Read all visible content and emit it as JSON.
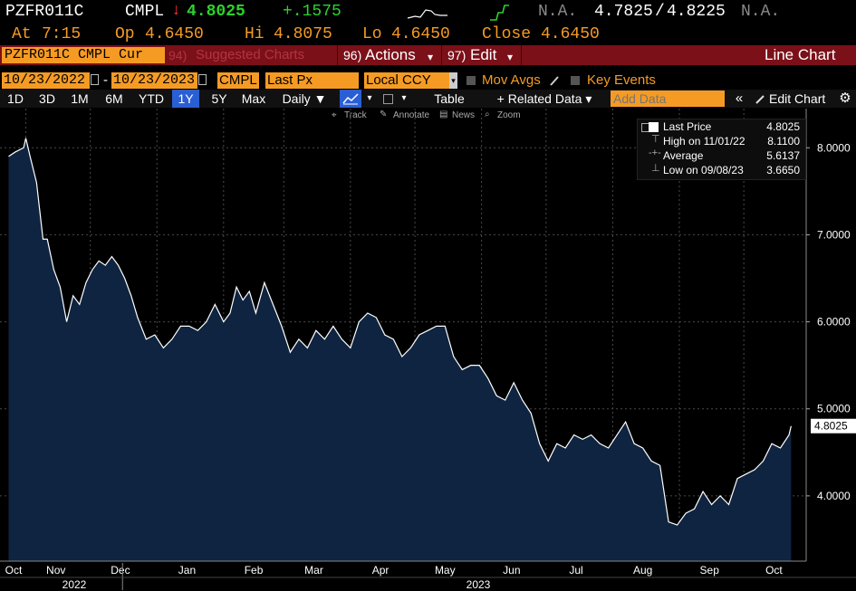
{
  "header": {
    "ticker": "PZFR011C",
    "source": "CMPL",
    "arrow": "↓",
    "last": "4.8025",
    "change": "+.1575",
    "na1": "N.A.",
    "bid": "4.7825",
    "slash": "/",
    "ask": "4.8225",
    "na2": "N.A.",
    "at_label": "At",
    "time": "7:15",
    "op_label": "Op",
    "open": "4.6450",
    "hi_label": "Hi",
    "high": "4.8075",
    "lo_label": "Lo",
    "low": "4.6450",
    "close_label": "Close",
    "close": "4.6450"
  },
  "titlebar": {
    "security": "PZFR011C CMPL Cur",
    "suggested_num": "94)",
    "suggested": "Suggested Charts",
    "actions_num": "96)",
    "actions": "Actions",
    "edit_num": "97)",
    "edit": "Edit",
    "chart_type": "Line Chart"
  },
  "toolbar1": {
    "start_date": "10/23/2022",
    "dash": "-",
    "end_date": "10/23/2023",
    "source": "CMPL",
    "field": "Last Px",
    "currency": "Local CCY",
    "mov_avgs": "Mov Avgs",
    "key_events": "Key Events"
  },
  "toolbar2": {
    "ranges": [
      "1D",
      "3D",
      "1M",
      "6M",
      "YTD",
      "1Y",
      "5Y",
      "Max"
    ],
    "selected_range": "1Y",
    "period": "Daily ▼",
    "table": "Table",
    "related": "+ Related Data ▾",
    "add_data_placeholder": "Add Data",
    "collapse": "«",
    "edit_chart": "Edit Chart",
    "track": "Track",
    "annotate": "Annotate",
    "news": "News",
    "zoom": "Zoom"
  },
  "legend": {
    "last_price_label": "Last Price",
    "last_price": "4.8025",
    "high_label": "High on 11/01/22",
    "high": "8.1100",
    "average_label": "Average",
    "average": "5.6137",
    "low_label": "Low on 09/08/23",
    "low": "3.6650"
  },
  "colors": {
    "accent_orange": "#f59b24",
    "title_red": "#7b1019",
    "down_red": "#ff3030",
    "up_green": "#2ed12e",
    "area_fill": "#0f2440",
    "line": "#ffffff"
  },
  "chart_data": {
    "type": "area",
    "ylim": [
      3.25,
      8.45
    ],
    "yticks": [
      "4.0000",
      "5.0000",
      "6.0000",
      "7.0000",
      "8.0000"
    ],
    "ytick_values": [
      4,
      5,
      6,
      7,
      8
    ],
    "last_value_label": "4.8025",
    "months": [
      "Oct",
      "Nov",
      "Dec",
      "Jan",
      "Feb",
      "Mar",
      "Apr",
      "May",
      "Jun",
      "Jul",
      "Aug",
      "Sep",
      "Oct"
    ],
    "years": [
      "2022",
      "2023"
    ],
    "series": [
      {
        "x": [
          "2022-10-24",
          "2022-10-27",
          "2022-10-31",
          "2022-11-01",
          "2022-11-03",
          "2022-11-06",
          "2022-11-09",
          "2022-11-11",
          "2022-11-14",
          "2022-11-17",
          "2022-11-20",
          "2022-11-23",
          "2022-11-26",
          "2022-11-29",
          "2022-12-02",
          "2022-12-05",
          "2022-12-08",
          "2022-12-11",
          "2022-12-14",
          "2022-12-17",
          "2022-12-20",
          "2022-12-23",
          "2022-12-27",
          "2022-12-31",
          "2023-01-04",
          "2023-01-08",
          "2023-01-12",
          "2023-01-16",
          "2023-01-20",
          "2023-01-24",
          "2023-01-28",
          "2023-02-01",
          "2023-02-04",
          "2023-02-07",
          "2023-02-10",
          "2023-02-13",
          "2023-02-16",
          "2023-02-20",
          "2023-02-24",
          "2023-02-28",
          "2023-03-04",
          "2023-03-08",
          "2023-03-12",
          "2023-03-16",
          "2023-03-20",
          "2023-03-24",
          "2023-03-28",
          "2023-04-01",
          "2023-04-05",
          "2023-04-09",
          "2023-04-13",
          "2023-04-17",
          "2023-04-21",
          "2023-04-25",
          "2023-04-29",
          "2023-05-03",
          "2023-05-07",
          "2023-05-11",
          "2023-05-15",
          "2023-05-19",
          "2023-05-23",
          "2023-05-27",
          "2023-05-31",
          "2023-06-04",
          "2023-06-08",
          "2023-06-12",
          "2023-06-16",
          "2023-06-20",
          "2023-06-24",
          "2023-06-28",
          "2023-07-02",
          "2023-07-06",
          "2023-07-10",
          "2023-07-14",
          "2023-07-18",
          "2023-07-22",
          "2023-07-26",
          "2023-07-30",
          "2023-08-03",
          "2023-08-07",
          "2023-08-11",
          "2023-08-15",
          "2023-08-19",
          "2023-08-23",
          "2023-08-27",
          "2023-08-31",
          "2023-09-04",
          "2023-09-08",
          "2023-09-12",
          "2023-09-16",
          "2023-09-20",
          "2023-09-24",
          "2023-09-28",
          "2023-10-02",
          "2023-10-06",
          "2023-10-10",
          "2023-10-14",
          "2023-10-18",
          "2023-10-22",
          "2023-10-23"
        ],
        "values": [
          7.9,
          7.95,
          8.0,
          8.11,
          7.9,
          7.6,
          6.95,
          6.95,
          6.6,
          6.4,
          6.0,
          6.3,
          6.2,
          6.45,
          6.6,
          6.7,
          6.65,
          6.75,
          6.65,
          6.5,
          6.3,
          6.05,
          5.8,
          5.85,
          5.7,
          5.8,
          5.95,
          5.95,
          5.9,
          6.0,
          6.2,
          6.0,
          6.1,
          6.4,
          6.25,
          6.35,
          6.1,
          6.45,
          6.2,
          5.95,
          5.65,
          5.8,
          5.7,
          5.9,
          5.8,
          5.95,
          5.8,
          5.7,
          6.0,
          6.1,
          6.05,
          5.85,
          5.8,
          5.6,
          5.7,
          5.85,
          5.9,
          5.95,
          5.95,
          5.6,
          5.45,
          5.5,
          5.5,
          5.35,
          5.15,
          5.1,
          5.3,
          5.1,
          4.95,
          4.6,
          4.4,
          4.6,
          4.55,
          4.7,
          4.65,
          4.7,
          4.6,
          4.55,
          4.7,
          4.85,
          4.6,
          4.55,
          4.4,
          4.35,
          3.7,
          3.665,
          3.8,
          3.85,
          4.05,
          3.9,
          4.0,
          3.9,
          4.2,
          4.25,
          4.3,
          4.4,
          4.6,
          4.55,
          4.7,
          4.8025
        ]
      }
    ]
  }
}
